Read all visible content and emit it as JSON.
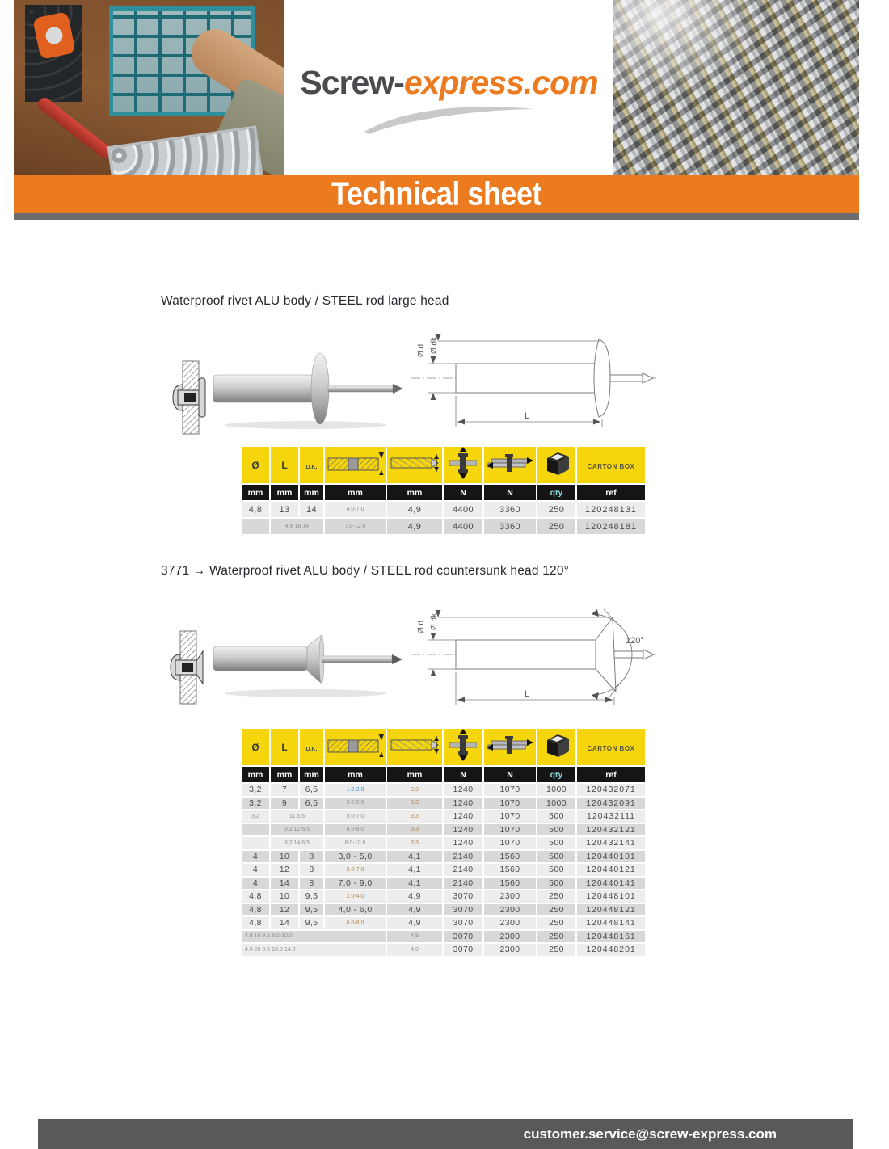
{
  "header": {
    "logo": {
      "part1": "Screw-",
      "part2": "express.com"
    },
    "banner_title": "Technical sheet"
  },
  "footer": {
    "email": "customer.service@screw-express.com"
  },
  "table_header": {
    "diameter": "Ø",
    "length": "L",
    "dk": "D.K.",
    "carton_box": "CARTON BOX",
    "units": [
      "mm",
      "mm",
      "mm",
      "mm",
      "mm",
      "N",
      "N",
      "qty",
      "ref"
    ]
  },
  "colors": {
    "accent_orange": "#ec7a1f",
    "header_yellow": "#f5d60d",
    "units_black": "#151515",
    "footer_gray": "#58595b",
    "link_blue": "#3e8fc7"
  },
  "sections": [
    {
      "heading": "Waterproof rivet ALU body / STEEL rod large head",
      "drawing": {
        "label_d": "Ø d",
        "label_dk": "Ø dk",
        "label_l": "L"
      },
      "rows": [
        [
          {
            "t": "4,8"
          },
          {
            "t": "13"
          },
          {
            "t": "14"
          },
          {
            "t": "4.0-7.0",
            "c": "sm"
          },
          {
            "t": "4,9"
          },
          {
            "t": "4400"
          },
          {
            "t": "3360"
          },
          {
            "t": "250"
          },
          {
            "t": "120248131"
          }
        ],
        [
          {
            "t": ""
          },
          {
            "t": "4,8 18 14",
            "c": "sm",
            "s": 2
          },
          {
            "t": "7.0-12.0",
            "c": "sm"
          },
          {
            "t": "4,9"
          },
          {
            "t": "4400"
          },
          {
            "t": "3360"
          },
          {
            "t": "250"
          },
          {
            "t": "120248181"
          }
        ]
      ]
    },
    {
      "heading": "3771 → Waterproof rivet ALU body / STEEL rod countersunk head 120°",
      "drawing": {
        "label_d": "Ø d",
        "label_dk": "Ø dk",
        "label_l": "L",
        "label_angle": "120°"
      },
      "rows": [
        [
          {
            "t": "3,2"
          },
          {
            "t": "7"
          },
          {
            "t": "6,5"
          },
          {
            "t": "1.0-3.0",
            "c": "smb"
          },
          {
            "t": "3,3",
            "c": "smo"
          },
          {
            "t": "1240"
          },
          {
            "t": "1070"
          },
          {
            "t": "1000"
          },
          {
            "t": "120432071"
          }
        ],
        [
          {
            "t": "3,2"
          },
          {
            "t": "9"
          },
          {
            "t": "6,5"
          },
          {
            "t": "3.0-5.0",
            "c": "sm"
          },
          {
            "t": "3,3",
            "c": "smo"
          },
          {
            "t": "1240"
          },
          {
            "t": "1070"
          },
          {
            "t": "1000"
          },
          {
            "t": "120432091"
          }
        ],
        [
          {
            "t": "3,2",
            "c": "sm"
          },
          {
            "t": "11 6,5",
            "c": "sm",
            "s": 2
          },
          {
            "t": "5.0-7.0",
            "c": "sm"
          },
          {
            "t": "3,3",
            "c": "smo"
          },
          {
            "t": "1240"
          },
          {
            "t": "1070"
          },
          {
            "t": "500"
          },
          {
            "t": "120432111"
          }
        ],
        [
          {
            "t": ""
          },
          {
            "t": "3,2 12 6,5",
            "c": "sm",
            "s": 2
          },
          {
            "t": "6.0-8.0",
            "c": "sm"
          },
          {
            "t": "3,3",
            "c": "smo"
          },
          {
            "t": "1240"
          },
          {
            "t": "1070"
          },
          {
            "t": "500"
          },
          {
            "t": "120432121"
          }
        ],
        [
          {
            "t": ""
          },
          {
            "t": "3,2 14 6,5",
            "c": "sm",
            "s": 2
          },
          {
            "t": "8.0-10.0",
            "c": "sm"
          },
          {
            "t": "3,3",
            "c": "smo"
          },
          {
            "t": "1240"
          },
          {
            "t": "1070"
          },
          {
            "t": "500"
          },
          {
            "t": "120432141"
          }
        ],
        [
          {
            "t": "4"
          },
          {
            "t": "10"
          },
          {
            "t": "8"
          },
          {
            "t": "3,0 - 5,0"
          },
          {
            "t": "4,1"
          },
          {
            "t": "2140"
          },
          {
            "t": "1560"
          },
          {
            "t": "500"
          },
          {
            "t": "120440101"
          }
        ],
        [
          {
            "t": "4"
          },
          {
            "t": "12"
          },
          {
            "t": "8"
          },
          {
            "t": "5.0-7.0",
            "c": "smo"
          },
          {
            "t": "4,1"
          },
          {
            "t": "2140"
          },
          {
            "t": "1560"
          },
          {
            "t": "500"
          },
          {
            "t": "120440121"
          }
        ],
        [
          {
            "t": "4"
          },
          {
            "t": "14"
          },
          {
            "t": "8"
          },
          {
            "t": "7,0 - 9,0"
          },
          {
            "t": "4,1"
          },
          {
            "t": "2140"
          },
          {
            "t": "1560"
          },
          {
            "t": "500"
          },
          {
            "t": "120440141"
          }
        ],
        [
          {
            "t": "4,8"
          },
          {
            "t": "10"
          },
          {
            "t": "9,5"
          },
          {
            "t": "2.0-4.0",
            "c": "smo"
          },
          {
            "t": "4,9"
          },
          {
            "t": "3070"
          },
          {
            "t": "2300"
          },
          {
            "t": "250"
          },
          {
            "t": "120448101"
          }
        ],
        [
          {
            "t": "4,8"
          },
          {
            "t": "12"
          },
          {
            "t": "9,5"
          },
          {
            "t": "4,0 - 6,0"
          },
          {
            "t": "4,9"
          },
          {
            "t": "3070"
          },
          {
            "t": "2300"
          },
          {
            "t": "250"
          },
          {
            "t": "120448121"
          }
        ],
        [
          {
            "t": "4,8"
          },
          {
            "t": "14"
          },
          {
            "t": "9,5"
          },
          {
            "t": "6.0-8.0",
            "c": "smo"
          },
          {
            "t": "4,9"
          },
          {
            "t": "3070"
          },
          {
            "t": "2300"
          },
          {
            "t": "250"
          },
          {
            "t": "120448141"
          }
        ],
        [
          {
            "t": "4.8 16 9.5 8.0-10.0",
            "c": "sml",
            "s": 4
          },
          {
            "t": "4,9",
            "c": "sm"
          },
          {
            "t": "3070"
          },
          {
            "t": "2300"
          },
          {
            "t": "250"
          },
          {
            "t": "120448161"
          }
        ],
        [
          {
            "t": "4.8 20 9.5 10.0-14.0",
            "c": "sml",
            "s": 4
          },
          {
            "t": "4,9",
            "c": "sm"
          },
          {
            "t": "3070"
          },
          {
            "t": "2300"
          },
          {
            "t": "250"
          },
          {
            "t": "120448201"
          }
        ]
      ]
    }
  ]
}
